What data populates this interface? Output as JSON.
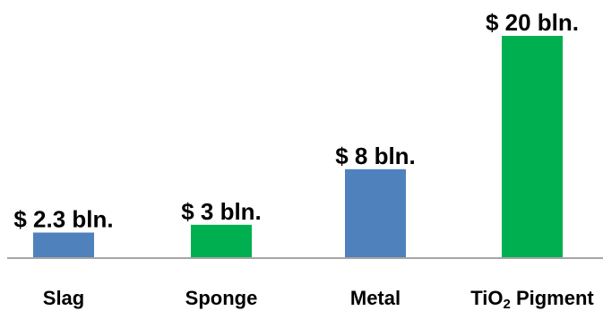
{
  "chart_data": {
    "type": "bar",
    "title": "",
    "xlabel": "",
    "ylabel": "",
    "categories": [
      "Slag",
      "Sponge",
      "Metal",
      "TiO2 Pigment"
    ],
    "category_labels": [
      {
        "main": "Slag",
        "sub": "",
        "tail": ""
      },
      {
        "main": "Sponge",
        "sub": "",
        "tail": ""
      },
      {
        "main": "Metal",
        "sub": "",
        "tail": ""
      },
      {
        "main": "TiO",
        "sub": "2",
        "tail": " Pigment"
      }
    ],
    "values": [
      2.3,
      3,
      8,
      20
    ],
    "data_labels": [
      "$ 2.3 bln.",
      "$ 3 bln.",
      "$ 8 bln.",
      "$ 20 bln."
    ],
    "bar_colors": [
      "#4f81bd",
      "#00b050",
      "#4f81bd",
      "#00b050"
    ],
    "axis_color": "#a6a6a6",
    "ylim": [
      0,
      20
    ],
    "grid": false,
    "legend": "none"
  }
}
